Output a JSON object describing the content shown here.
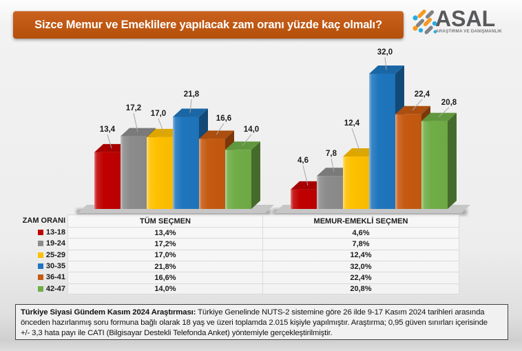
{
  "title": "Sizce Memur ve Emeklilere yapılacak zam oranı yüzde kaç olmalı?",
  "logo": {
    "name": "ASAL",
    "subtitle": "ARAŞTIRMA VE DANIŞMANLIK",
    "colors": {
      "gray": "#808285",
      "orange": "#F59B20",
      "cyan": "#29ABE2"
    }
  },
  "chart_data": {
    "type": "bar",
    "style": "3d-clustered",
    "categories": [
      "13-18",
      "19-24",
      "25-29",
      "30-35",
      "36-41",
      "42-47"
    ],
    "series": [
      {
        "name": "TÜM SEÇMEN",
        "values": [
          13.4,
          17.2,
          17.0,
          21.8,
          16.6,
          14.0
        ]
      },
      {
        "name": "MEMUR-EMEKLİ SEÇMEN",
        "values": [
          4.6,
          7.8,
          12.4,
          32.0,
          22.4,
          20.8
        ]
      }
    ],
    "colors": [
      "#C00000",
      "#8C8C8C",
      "#FFC000",
      "#1F76BE",
      "#C55A11",
      "#70AD47"
    ],
    "data_labels": true,
    "legend_position": "table-bottom"
  },
  "table": {
    "header": [
      "ZAM ORANI",
      "TÜM SEÇMEN",
      "MEMUR-EMEKLİ SEÇMEN"
    ],
    "rows": [
      {
        "range": "13-18",
        "color": "#C00000",
        "tum": "13,4%",
        "memur": "4,6%"
      },
      {
        "range": "19-24",
        "color": "#8C8C8C",
        "tum": "17,2%",
        "memur": "7,8%"
      },
      {
        "range": "25-29",
        "color": "#FFC000",
        "tum": "17,0%",
        "memur": "12,4%"
      },
      {
        "range": "30-35",
        "color": "#1F76BE",
        "tum": "21,8%",
        "memur": "32,0%"
      },
      {
        "range": "36-41",
        "color": "#C55A11",
        "tum": "16,6%",
        "memur": "22,4%"
      },
      {
        "range": "42-47",
        "color": "#70AD47",
        "tum": "14,0%",
        "memur": "20,8%"
      }
    ]
  },
  "footnote": {
    "bold": "Türkiye Siyasi Gündem Kasım 2024 Araştırması:",
    "text": " Türkiye Genelinde NUTS-2 sistemine göre 26 ilde 9-17 Kasım 2024 tarihleri arasında önceden hazırlanmış soru formuna bağlı olarak 18 yaş ve üzeri toplamda 2.015 kişiyle yapılmıştır. Araştırma; 0,95 güven sınırları içerisinde +/⁠-⁠ 3,3 hata payı ile CATI (Bilgisayar Destekli Telefonda Anket) yöntemiyle gerçekleştirilmiştir."
  }
}
